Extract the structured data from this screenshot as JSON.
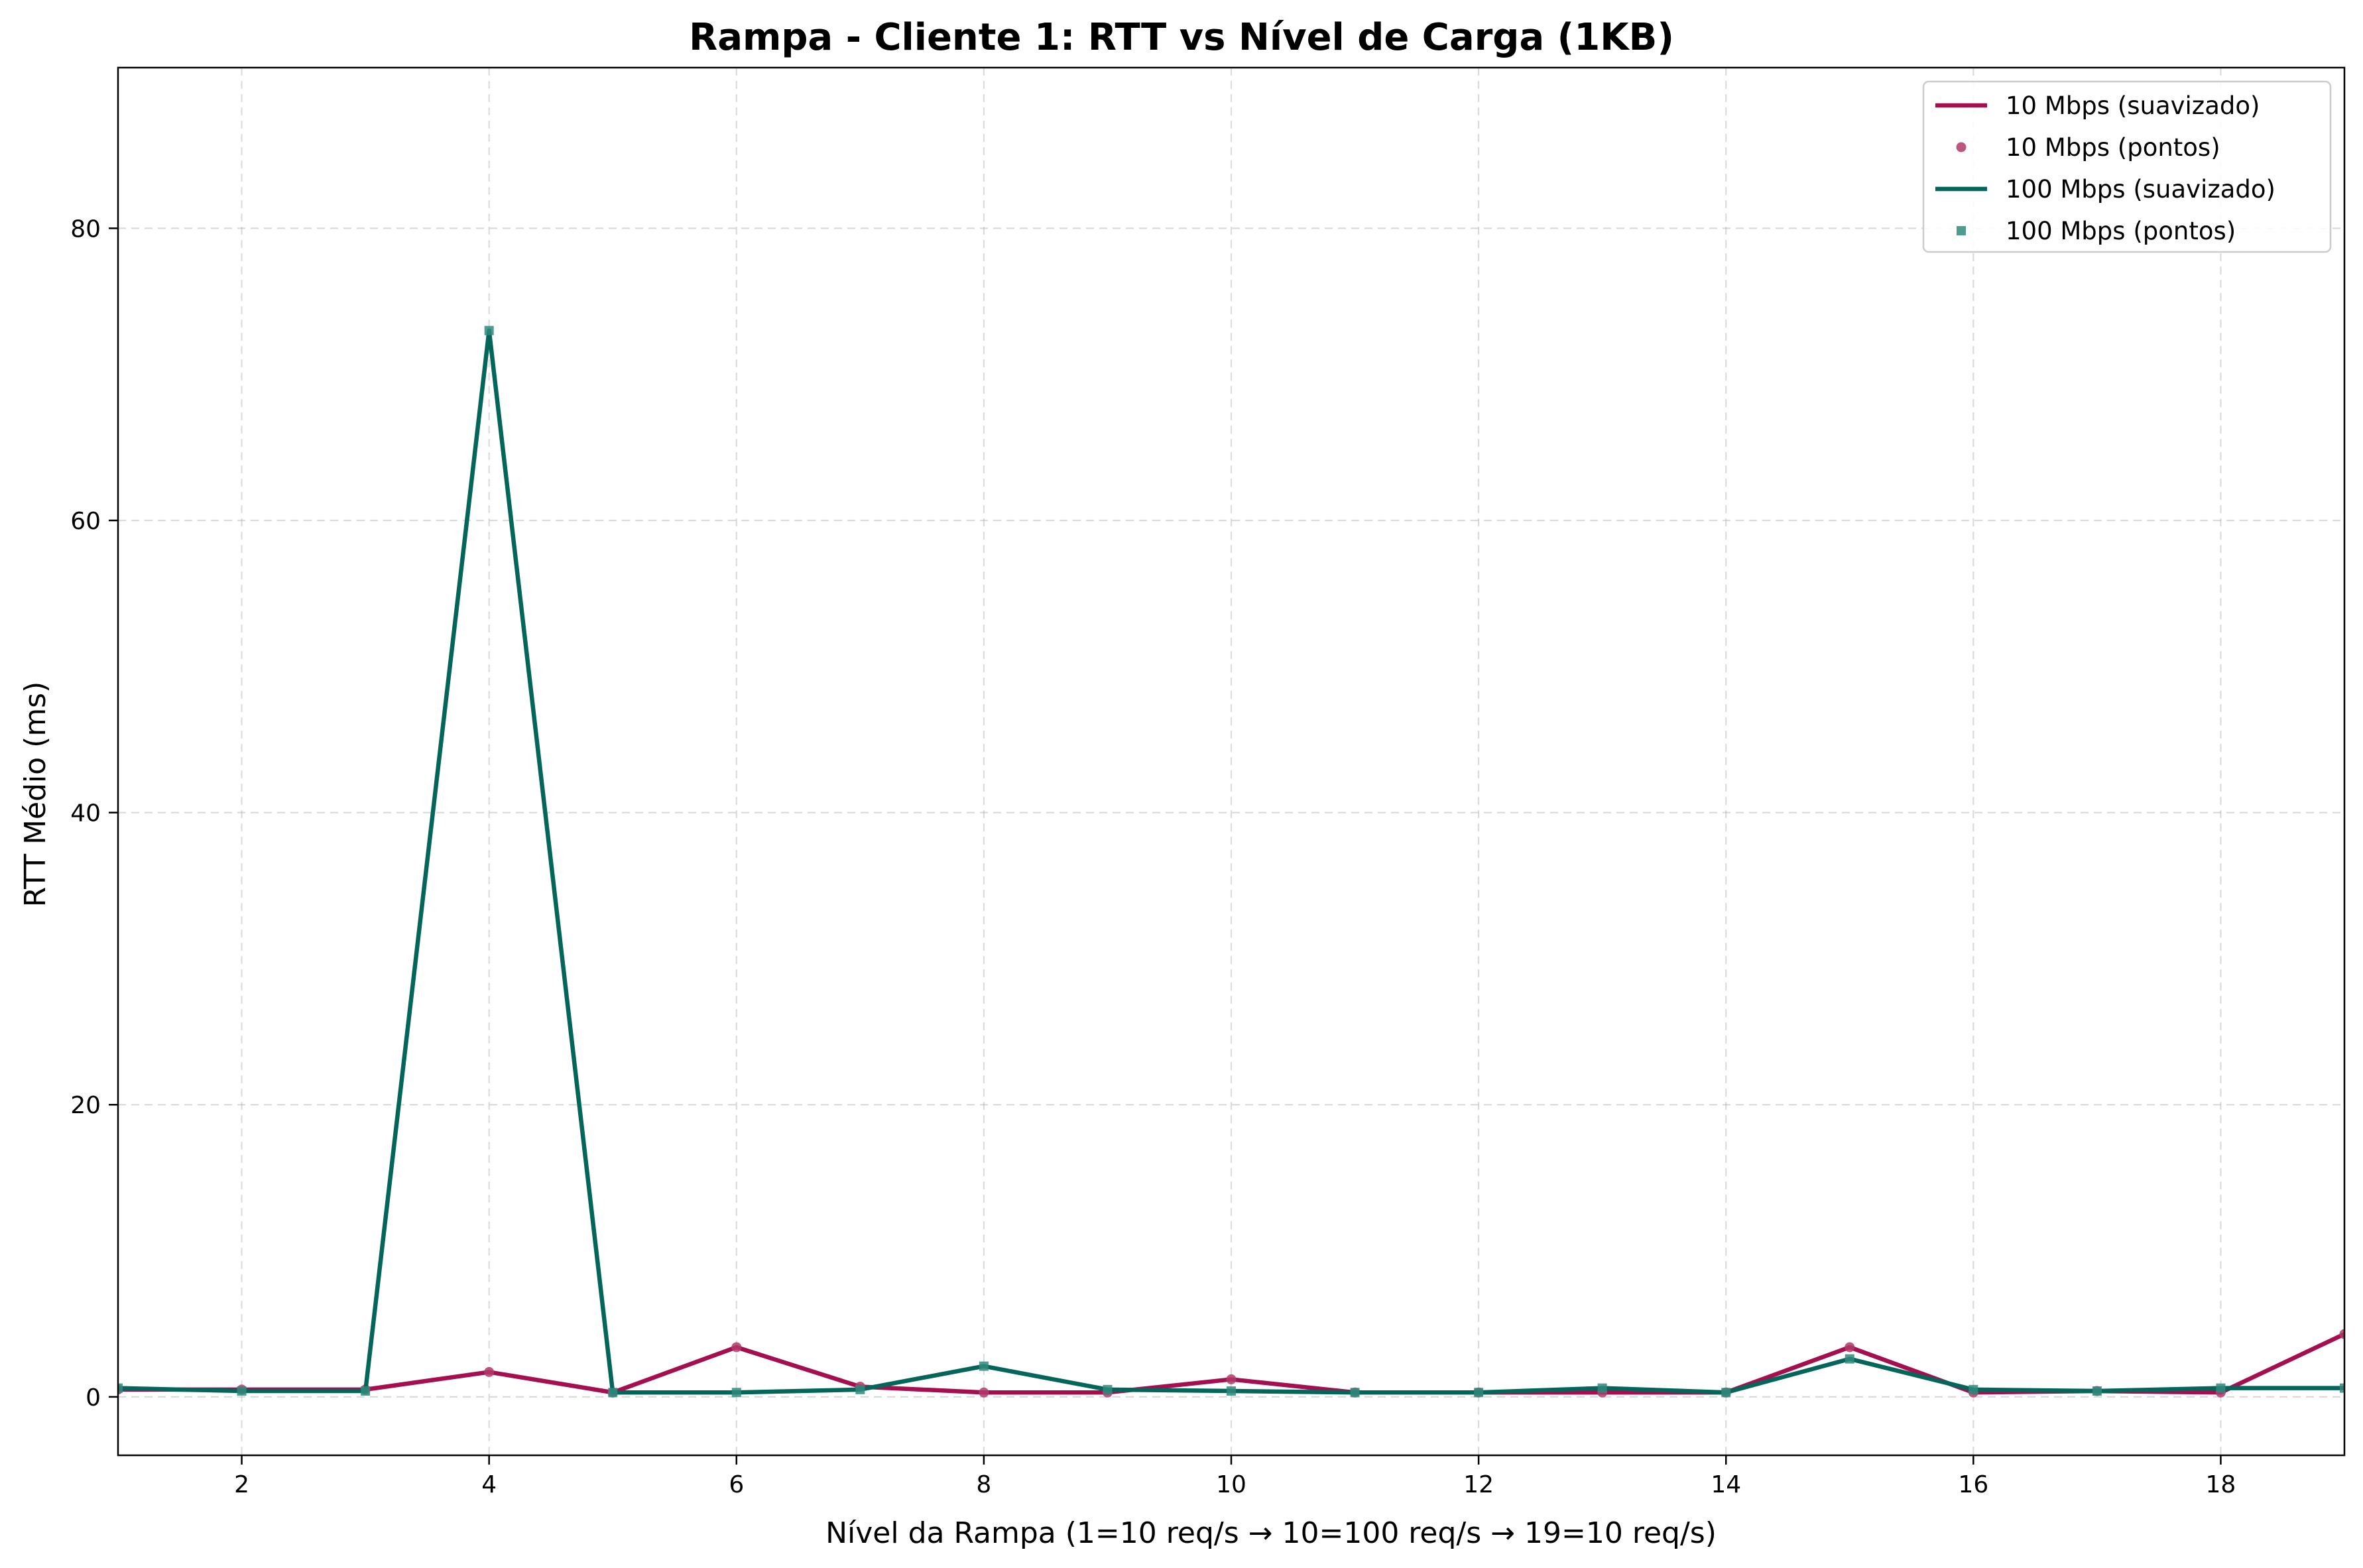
{
  "chart_data": {
    "type": "line",
    "title": "Rampa - Cliente 1: RTT vs Nível de Carga (1KB)",
    "xlabel": "Nível da Rampa (1=10 req/s → 10=100 req/s → 19=10 req/s)",
    "ylabel": "RTT Médio (ms)",
    "xlim": [
      1,
      19
    ],
    "ylim": [
      -4,
      91
    ],
    "xticks": [
      2,
      4,
      6,
      8,
      10,
      12,
      14,
      16,
      18
    ],
    "yticks": [
      0,
      20,
      40,
      60,
      80
    ],
    "grid": true,
    "legend_position": "top-right",
    "x": [
      1,
      2,
      3,
      4,
      5,
      6,
      7,
      8,
      9,
      10,
      11,
      12,
      13,
      14,
      15,
      16,
      17,
      18,
      19
    ],
    "series": [
      {
        "name": "10 Mbps (suavizado)",
        "kind": "line",
        "color": "#a50f50",
        "values": [
          0.5,
          0.5,
          0.5,
          1.7,
          0.3,
          3.4,
          0.7,
          0.3,
          0.3,
          1.2,
          0.3,
          0.3,
          0.3,
          0.3,
          3.4,
          0.3,
          0.4,
          0.3,
          4.3
        ]
      },
      {
        "name": "10 Mbps (pontos)",
        "kind": "points",
        "marker": "circle",
        "color": "#b03a6a",
        "values": [
          0.5,
          0.5,
          0.5,
          1.7,
          0.3,
          3.4,
          0.7,
          0.3,
          0.3,
          1.2,
          0.3,
          0.3,
          0.3,
          0.3,
          3.4,
          0.3,
          0.4,
          0.3,
          4.3
        ]
      },
      {
        "name": "100 Mbps (suavizado)",
        "kind": "line",
        "color": "#04665a",
        "values": [
          0.6,
          0.4,
          0.4,
          73.0,
          0.3,
          0.3,
          0.5,
          2.1,
          0.5,
          0.4,
          0.3,
          0.3,
          0.6,
          0.3,
          2.6,
          0.5,
          0.4,
          0.6,
          0.6
        ]
      },
      {
        "name": "100 Mbps (pontos)",
        "kind": "points",
        "marker": "square",
        "color": "#2f8a7c",
        "values": [
          0.6,
          0.4,
          0.4,
          73.0,
          0.3,
          0.3,
          0.5,
          2.1,
          0.5,
          0.4,
          0.3,
          0.3,
          0.6,
          0.3,
          2.6,
          0.5,
          0.4,
          0.6,
          0.6
        ]
      }
    ]
  }
}
